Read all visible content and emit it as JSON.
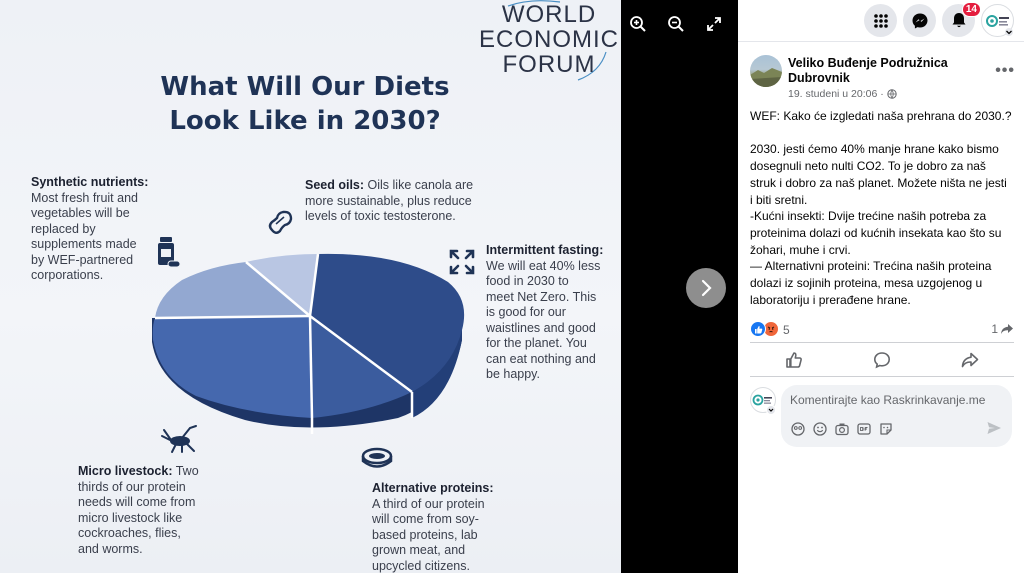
{
  "infographic": {
    "logo_lines": [
      "WORLD",
      "ECONOMIC",
      "FORUM"
    ],
    "title_line1": "What Will Our Diets",
    "title_line2": "Look Like in 2030?",
    "synthetic": {
      "head": "Synthetic nutrients:",
      "lines": [
        "Most fresh fruit and",
        "vegetables will be",
        "replaced by",
        "supplements made",
        "by WEF-partnered",
        "corporations."
      ]
    },
    "seed": {
      "head": "Seed oils:",
      "first": " Oils like canola are",
      "lines": [
        "more sustainable, plus reduce",
        "levels of toxic testosterone."
      ]
    },
    "fasting": {
      "head": "Intermittent fasting:",
      "lines": [
        "We will eat 40% less",
        "food in 2030 to",
        "meet Net Zero. This",
        "is good for our",
        "waistlines and good",
        "for the planet. You",
        "can eat nothing and",
        "be happy."
      ]
    },
    "livestock": {
      "head": "Micro livestock:",
      "first": " Two",
      "lines": [
        "thirds of our protein",
        "needs will come from",
        "micro livestock like",
        "cockroaches, flies,",
        "and worms."
      ]
    },
    "proteins": {
      "head": "Alternative proteins:",
      "lines": [
        "A third of our protein",
        "will come from soy-",
        "based proteins, lab",
        "grown meat, and",
        "upcycled citizens."
      ]
    },
    "colors": {
      "title": "#1f3356",
      "slice_dark": "#2d4a86",
      "slice_mid": "#3f63a8",
      "slice_light": "#8fa6d2",
      "slice_pale": "#b8c6e4"
    }
  },
  "viewer": {
    "icons": [
      "zoom-in-icon",
      "zoom-out-icon",
      "fullscreen-icon",
      "chevron-right-icon"
    ]
  },
  "topbar": {
    "notifications_count": "14",
    "icons": [
      "menu-grid-icon",
      "messenger-icon",
      "bell-icon",
      "profile-avatar"
    ]
  },
  "post": {
    "author": "Veliko Buđenje Podružnica Dubrovnik",
    "timestamp": "19. studeni u 20:06 ·",
    "more_label": "•••",
    "text": "WEF: Kako će izgledati naša prehrana do 2030.?\n\n2030. jesti ćemo 40% manje hrane kako bismo dosegnuli neto nulti CO2. To je dobro za naš struk i dobro za naš planet. Možete ništa ne jesti i biti sretni.\n-Kućni insekti: Dvije trećine naših potreba za proteinima dolazi od kućnih insekata kao što su žohari, muhe i crvi.\n— Alternativni proteini: Trećina naših proteina dolazi iz sojinih proteina, mesa uzgojenog u laboratoriju i prerađene hrane.",
    "reaction_count": "5",
    "share_count": "1",
    "reaction_colors": {
      "like": "#1877f2",
      "angry": "#f0663a"
    }
  },
  "comment": {
    "placeholder": "Komentirajte kao Raskrinkavanje.me",
    "tools": [
      "avatar-sticker-icon",
      "emoji-icon",
      "camera-icon",
      "gif-icon",
      "sticker-icon"
    ]
  }
}
